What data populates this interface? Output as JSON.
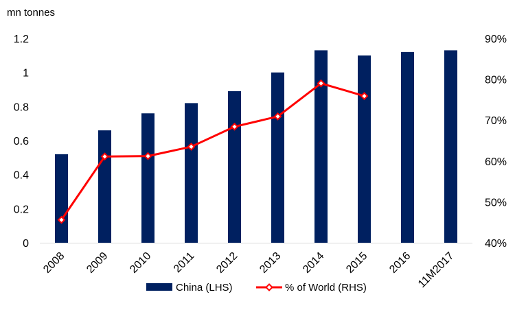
{
  "chart_data": {
    "type": "bar",
    "ylabel": "mn tonnes",
    "categories": [
      "2008",
      "2009",
      "2010",
      "2011",
      "2012",
      "2013",
      "2014",
      "2015",
      "2016",
      "11M2017"
    ],
    "series": [
      {
        "name": "China (LHS)",
        "type": "bar",
        "axis": "left",
        "color": "#002060",
        "values": [
          0.52,
          0.66,
          0.76,
          0.82,
          0.89,
          1.0,
          1.13,
          1.1,
          1.12,
          1.13
        ]
      },
      {
        "name": "% of World (RHS)",
        "type": "line",
        "axis": "right",
        "color": "#ff0000",
        "marker": "diamond-open",
        "values": [
          45.6,
          61.1,
          61.2,
          63.5,
          68.4,
          70.9,
          79.0,
          75.9,
          null,
          null
        ]
      }
    ],
    "y_left": {
      "min": 0,
      "max": 1.2,
      "ticks": [
        "0",
        "0.2",
        "0.4",
        "0.6",
        "0.8",
        "1",
        "1.2"
      ]
    },
    "y_right": {
      "min": 40,
      "max": 90,
      "ticks": [
        "40%",
        "50%",
        "60%",
        "70%",
        "80%",
        "90%"
      ]
    },
    "grid": false,
    "legend_position": "bottom"
  }
}
